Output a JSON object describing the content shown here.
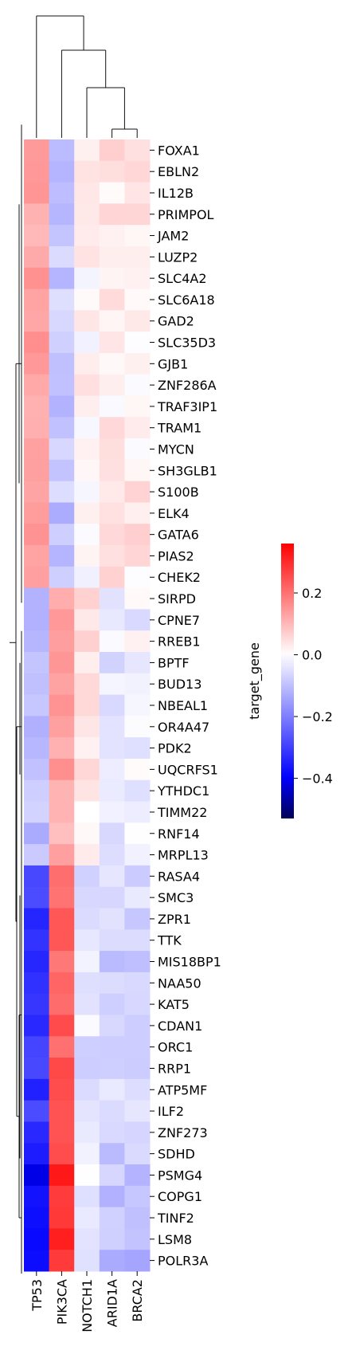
{
  "chart_data": {
    "type": "heatmap",
    "title": "",
    "columns": [
      "TP53",
      "PIK3CA",
      "NOTCH1",
      "ARID1A",
      "BRCA2"
    ],
    "row_labels": [
      "FOXA1",
      "EBLN2",
      "IL12B",
      "PRIMPOL",
      "JAM2",
      "LUZP2",
      "SLC4A2",
      "SLC6A18",
      "GAD2",
      "SLC35D3",
      "GJB1",
      "ZNF286A",
      "TRAF3IP1",
      "TRAM1",
      "MYCN",
      "SH3GLB1",
      "S100B",
      "ELK4",
      "GATA6",
      "PIAS2",
      "CHEK2",
      "SIRPD",
      "CPNE7",
      "RREB1",
      "BPTF",
      "BUD13",
      "NBEAL1",
      "OR4A47",
      "PDK2",
      "UQCRFS1",
      "YTHDC1",
      "TIMM22",
      "RNF14",
      "MRPL13",
      "RASA4",
      "SMC3",
      "ZPR1",
      "TTK",
      "MIS18BP1",
      "NAA50",
      "KAT5",
      "CDAN1",
      "ORC1",
      "RRP1",
      "ATP5MF",
      "ILF2",
      "ZNF273",
      "SDHD",
      "PSMG4",
      "COPG1",
      "TINF2",
      "LSM8",
      "POLR3A"
    ],
    "blocks": [
      {
        "rows": 21,
        "values": [
          0.13,
          -0.09,
          0.01,
          0.03,
          0.03
        ]
      },
      {
        "rows": 13,
        "values": [
          -0.1,
          0.12,
          0.04,
          -0.03,
          -0.02
        ]
      },
      {
        "rows": 14,
        "values": [
          -0.32,
          0.22,
          -0.04,
          -0.07,
          -0.07
        ]
      },
      {
        "rows": 5,
        "values": [
          -0.4,
          0.3,
          -0.02,
          -0.1,
          -0.12
        ]
      }
    ],
    "colorbar": {
      "label": "target_gene",
      "colormap": "bwr",
      "vmin": -0.53,
      "vmax": 0.36,
      "ticks": [
        0.2,
        0.0,
        -0.2,
        -0.4
      ],
      "tick_labels": [
        "0.2",
        "0.0",
        "−0.2",
        "−0.4"
      ]
    },
    "colors": {
      "low": "#000055",
      "mid_low": "#0000ff",
      "mid": "#ffffff",
      "high": "#ff0000"
    }
  }
}
